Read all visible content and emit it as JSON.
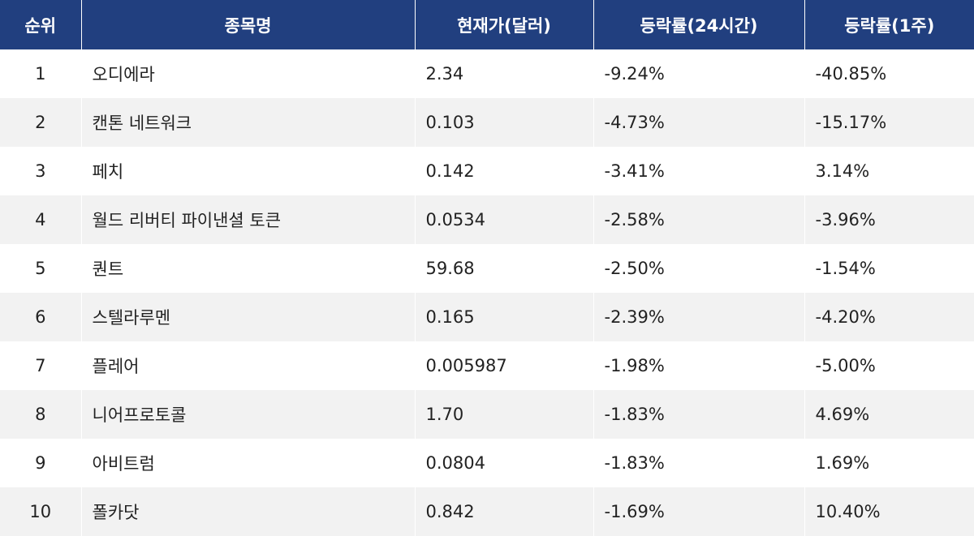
{
  "table": {
    "headers": {
      "rank": "순위",
      "name": "종목명",
      "price": "현재가(달러)",
      "change_24h": "등락률(24시간)",
      "change_1w": "등락률(1주)"
    },
    "rows": [
      {
        "rank": "1",
        "name": "오디에라",
        "price": "2.34",
        "change_24h": "-9.24%",
        "change_1w": "-40.85%"
      },
      {
        "rank": "2",
        "name": "캔톤 네트워크",
        "price": "0.103",
        "change_24h": "-4.73%",
        "change_1w": "-15.17%"
      },
      {
        "rank": "3",
        "name": "페치",
        "price": "0.142",
        "change_24h": "-3.41%",
        "change_1w": "3.14%"
      },
      {
        "rank": "4",
        "name": "월드 리버티 파이낸셜 토큰",
        "price": "0.0534",
        "change_24h": "-2.58%",
        "change_1w": "-3.96%"
      },
      {
        "rank": "5",
        "name": "퀀트",
        "price": "59.68",
        "change_24h": "-2.50%",
        "change_1w": "-1.54%"
      },
      {
        "rank": "6",
        "name": "스텔라루멘",
        "price": "0.165",
        "change_24h": "-2.39%",
        "change_1w": "-4.20%"
      },
      {
        "rank": "7",
        "name": "플레어",
        "price": "0.005987",
        "change_24h": "-1.98%",
        "change_1w": "-5.00%"
      },
      {
        "rank": "8",
        "name": "니어프로토콜",
        "price": "1.70",
        "change_24h": "-1.83%",
        "change_1w": "4.69%"
      },
      {
        "rank": "9",
        "name": "아비트럼",
        "price": "0.0804",
        "change_24h": "-1.83%",
        "change_1w": "1.69%"
      },
      {
        "rank": "10",
        "name": "폴카닷",
        "price": "0.842",
        "change_24h": "-1.69%",
        "change_1w": "10.40%"
      }
    ]
  },
  "colors": {
    "header_bg": "#213f7f",
    "header_text": "#ffffff",
    "row_alt_bg": "#f2f2f2",
    "row_bg": "#ffffff",
    "text": "#222222"
  }
}
